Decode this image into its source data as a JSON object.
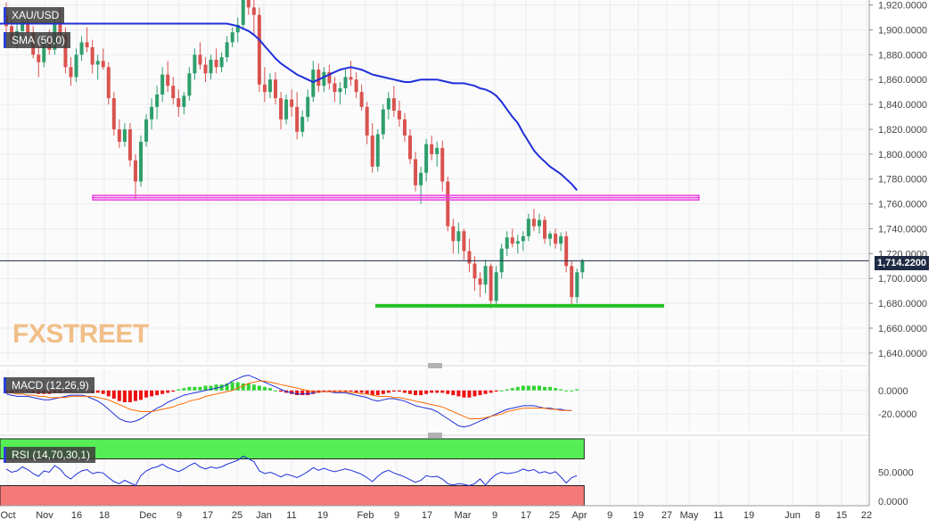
{
  "symbol": "XAU/USD",
  "indicators": {
    "sma": "SMA (50,0)",
    "macd": "MACD (12,26,9)",
    "rsi": "RSI (14,70,30,1)"
  },
  "watermark": "FXSTREET",
  "price_tag": "1,714.2200",
  "colors": {
    "up": "#2e9e6b",
    "down": "#d9534f",
    "sma": "#1f2fd8",
    "resistance": "#e93ee0",
    "support": "#22c322",
    "macd_pos": "#32d432",
    "macd_neg": "#ee1111",
    "macd_line": "#1f2fd8",
    "signal_line": "#ff6a00",
    "rsi_over": "#55ee55",
    "rsi_under": "#f47a7a",
    "rsi_line": "#1f2fd8"
  },
  "chart_data": [
    {
      "type": "candlestick",
      "title": "XAU/USD",
      "x_ticks": [
        "Oct",
        "Nov",
        "16",
        "18",
        "Dec",
        "9",
        "17",
        "25",
        "Jan",
        "11",
        "19",
        "Feb",
        "9",
        "17",
        "Mar",
        "9",
        "17",
        "25",
        "Apr",
        "9",
        "19",
        "27",
        "May",
        "11",
        "19",
        "Jun",
        "8",
        "15",
        "22"
      ],
      "y_ticks": [
        "1,920.0000",
        "1,900.0000",
        "1,880.0000",
        "1,860.0000",
        "1,840.0000",
        "1,820.0000",
        "1,800.0000",
        "1,780.0000",
        "1,760.0000",
        "1,740.0000",
        "1,720.0000",
        "1,700.0000",
        "1,680.0000",
        "1,660.0000",
        "1,640.0000"
      ],
      "ylim": [
        1632,
        1924
      ],
      "candles": [
        [
          1912,
          1922,
          1897,
          1903
        ],
        [
          1903,
          1908,
          1888,
          1892
        ],
        [
          1892,
          1905,
          1885,
          1899
        ],
        [
          1899,
          1912,
          1890,
          1906
        ],
        [
          1906,
          1916,
          1895,
          1898
        ],
        [
          1898,
          1903,
          1877,
          1880
        ],
        [
          1880,
          1888,
          1862,
          1874
        ],
        [
          1874,
          1895,
          1870,
          1891
        ],
        [
          1891,
          1900,
          1880,
          1884
        ],
        [
          1884,
          1912,
          1880,
          1905
        ],
        [
          1905,
          1918,
          1892,
          1896
        ],
        [
          1896,
          1902,
          1865,
          1870
        ],
        [
          1870,
          1878,
          1855,
          1862
        ],
        [
          1862,
          1885,
          1858,
          1880
        ],
        [
          1880,
          1895,
          1875,
          1890
        ],
        [
          1890,
          1902,
          1882,
          1886
        ],
        [
          1886,
          1892,
          1865,
          1872
        ],
        [
          1872,
          1880,
          1860,
          1875
        ],
        [
          1875,
          1885,
          1868,
          1870
        ],
        [
          1870,
          1874,
          1840,
          1845
        ],
        [
          1845,
          1850,
          1815,
          1820
        ],
        [
          1820,
          1828,
          1805,
          1810
        ],
        [
          1810,
          1825,
          1806,
          1820
        ],
        [
          1820,
          1825,
          1790,
          1795
        ],
        [
          1795,
          1800,
          1764,
          1778
        ],
        [
          1778,
          1815,
          1774,
          1810
        ],
        [
          1810,
          1832,
          1806,
          1828
        ],
        [
          1828,
          1845,
          1820,
          1838
        ],
        [
          1838,
          1855,
          1828,
          1848
        ],
        [
          1848,
          1870,
          1842,
          1864
        ],
        [
          1864,
          1875,
          1850,
          1855
        ],
        [
          1855,
          1862,
          1840,
          1845
        ],
        [
          1845,
          1852,
          1830,
          1838
        ],
        [
          1838,
          1850,
          1832,
          1847
        ],
        [
          1847,
          1870,
          1843,
          1865
        ],
        [
          1865,
          1885,
          1860,
          1880
        ],
        [
          1880,
          1890,
          1868,
          1872
        ],
        [
          1872,
          1878,
          1858,
          1865
        ],
        [
          1865,
          1880,
          1860,
          1876
        ],
        [
          1876,
          1885,
          1865,
          1870
        ],
        [
          1870,
          1882,
          1866,
          1878
        ],
        [
          1878,
          1895,
          1874,
          1890
        ],
        [
          1890,
          1902,
          1886,
          1898
        ],
        [
          1898,
          1910,
          1890,
          1904
        ],
        [
          1904,
          1932,
          1900,
          1926
        ],
        [
          1926,
          1935,
          1912,
          1918
        ],
        [
          1918,
          1925,
          1895,
          1912
        ],
        [
          1912,
          1918,
          1850,
          1856
        ],
        [
          1856,
          1870,
          1842,
          1850
        ],
        [
          1850,
          1865,
          1845,
          1860
        ],
        [
          1860,
          1866,
          1840,
          1845
        ],
        [
          1845,
          1850,
          1820,
          1828
        ],
        [
          1828,
          1848,
          1824,
          1844
        ],
        [
          1844,
          1852,
          1830,
          1838
        ],
        [
          1838,
          1850,
          1812,
          1818
        ],
        [
          1818,
          1835,
          1814,
          1830
        ],
        [
          1830,
          1852,
          1826,
          1846
        ],
        [
          1846,
          1875,
          1842,
          1868
        ],
        [
          1868,
          1873,
          1850,
          1855
        ],
        [
          1855,
          1870,
          1850,
          1866
        ],
        [
          1866,
          1872,
          1852,
          1857
        ],
        [
          1857,
          1862,
          1842,
          1850
        ],
        [
          1850,
          1858,
          1840,
          1853
        ],
        [
          1853,
          1868,
          1848,
          1862
        ],
        [
          1862,
          1875,
          1855,
          1860
        ],
        [
          1860,
          1866,
          1845,
          1850
        ],
        [
          1850,
          1856,
          1835,
          1838
        ],
        [
          1838,
          1842,
          1808,
          1815
        ],
        [
          1815,
          1825,
          1785,
          1790
        ],
        [
          1790,
          1820,
          1786,
          1816
        ],
        [
          1816,
          1840,
          1812,
          1836
        ],
        [
          1836,
          1850,
          1828,
          1845
        ],
        [
          1845,
          1855,
          1830,
          1835
        ],
        [
          1835,
          1843,
          1822,
          1828
        ],
        [
          1828,
          1833,
          1810,
          1815
        ],
        [
          1815,
          1820,
          1792,
          1796
        ],
        [
          1796,
          1802,
          1770,
          1775
        ],
        [
          1775,
          1790,
          1760,
          1785
        ],
        [
          1785,
          1812,
          1778,
          1808
        ],
        [
          1808,
          1815,
          1795,
          1800
        ],
        [
          1800,
          1810,
          1790,
          1805
        ],
        [
          1805,
          1811,
          1770,
          1778
        ],
        [
          1778,
          1782,
          1738,
          1742
        ],
        [
          1742,
          1748,
          1720,
          1730
        ],
        [
          1730,
          1745,
          1720,
          1738
        ],
        [
          1738,
          1740,
          1715,
          1722
        ],
        [
          1722,
          1732,
          1705,
          1712
        ],
        [
          1712,
          1718,
          1690,
          1700
        ],
        [
          1700,
          1705,
          1685,
          1695
        ],
        [
          1695,
          1715,
          1688,
          1710
        ],
        [
          1710,
          1712,
          1676,
          1682
        ],
        [
          1682,
          1710,
          1678,
          1705
        ],
        [
          1705,
          1728,
          1700,
          1724
        ],
        [
          1724,
          1738,
          1718,
          1733
        ],
        [
          1733,
          1740,
          1725,
          1728
        ],
        [
          1728,
          1735,
          1720,
          1730
        ],
        [
          1730,
          1738,
          1722,
          1734
        ],
        [
          1734,
          1752,
          1730,
          1748
        ],
        [
          1748,
          1756,
          1738,
          1742
        ],
        [
          1742,
          1752,
          1736,
          1747
        ],
        [
          1747,
          1750,
          1728,
          1732
        ],
        [
          1732,
          1738,
          1726,
          1736
        ],
        [
          1736,
          1740,
          1724,
          1728
        ],
        [
          1728,
          1737,
          1722,
          1734
        ],
        [
          1734,
          1738,
          1705,
          1710
        ],
        [
          1710,
          1714,
          1677,
          1685
        ],
        [
          1685,
          1708,
          1680,
          1705
        ],
        [
          1705,
          1716,
          1700,
          1714.22
        ]
      ],
      "sma_50": [
        1905,
        1904,
        1903,
        1901,
        1899,
        1896,
        1892,
        1887,
        1882,
        1877,
        1873,
        1870,
        1867,
        1864,
        1862,
        1860,
        1858,
        1860,
        1862,
        1864,
        1866,
        1868,
        1869,
        1870,
        1869,
        1868,
        1866,
        1864,
        1863,
        1862,
        1861,
        1860,
        1859,
        1858,
        1858,
        1859,
        1860,
        1860,
        1860,
        1860,
        1859,
        1858,
        1857,
        1857,
        1857,
        1856,
        1855,
        1853,
        1852,
        1850,
        1847,
        1842,
        1836,
        1830,
        1825,
        1817,
        1810,
        1803,
        1798,
        1794,
        1790,
        1787,
        1784,
        1780,
        1776,
        1771
      ],
      "sma_start_index": 41,
      "resistance": 1765,
      "support": 1678,
      "current": 1714.22
    },
    {
      "type": "bar+line",
      "title": "MACD (12,26,9)",
      "y_ticks": [
        "0.0000",
        "-20.0000"
      ],
      "ylim": [
        -35,
        18
      ],
      "histogram": [
        -2,
        -2,
        -1,
        -1,
        -1,
        -2,
        -3,
        -3,
        -3,
        -2,
        -2,
        -1,
        -1,
        0,
        0,
        -1,
        -2,
        -2,
        -3,
        -5,
        -7,
        -9,
        -10,
        -10,
        -9,
        -8,
        -6,
        -5,
        -4,
        -3,
        -2,
        -1,
        1,
        2,
        3,
        3,
        3,
        4,
        4,
        5,
        5,
        6,
        7,
        7,
        6,
        6,
        5,
        4,
        3,
        2,
        0,
        -1,
        -2,
        -3,
        -4,
        -4,
        -4,
        -3,
        -2,
        -1,
        -1,
        -1,
        -1,
        -1,
        -1,
        -2,
        -2,
        -3,
        -4,
        -4,
        -3,
        -2,
        -1,
        -1,
        -2,
        -3,
        -4,
        -4,
        -3,
        -2,
        -2,
        -2,
        -3,
        -4,
        -5,
        -6,
        -6,
        -5,
        -4,
        -3,
        -2,
        -1,
        0,
        1,
        2,
        3,
        4,
        4,
        4,
        4,
        3,
        3,
        2,
        1,
        0,
        0,
        1
      ],
      "macd": [
        -3,
        -4,
        -5,
        -5,
        -5,
        -6,
        -7,
        -8,
        -8,
        -7,
        -6,
        -5,
        -4,
        -4,
        -4,
        -5,
        -7,
        -9,
        -12,
        -16,
        -20,
        -24,
        -26,
        -27,
        -26,
        -24,
        -21,
        -18,
        -15,
        -13,
        -10,
        -8,
        -6,
        -4,
        -3,
        -2,
        -1,
        0,
        1,
        2,
        3,
        5,
        8,
        10,
        12,
        13,
        11,
        9,
        7,
        5,
        3,
        1,
        -1,
        -2,
        -3,
        -3,
        -3,
        -2,
        -1,
        -1,
        -1,
        -2,
        -2,
        -2,
        -3,
        -4,
        -5,
        -6,
        -8,
        -9,
        -8,
        -7,
        -7,
        -8,
        -9,
        -11,
        -13,
        -14,
        -15,
        -16,
        -18,
        -21,
        -24,
        -27,
        -30,
        -31,
        -30,
        -28,
        -26,
        -24,
        -22,
        -20,
        -18,
        -16,
        -15,
        -14,
        -13,
        -13,
        -13,
        -14,
        -15,
        -15,
        -16,
        -16,
        -17,
        -17
      ],
      "signal": [
        -2,
        -2,
        -3,
        -3,
        -4,
        -4,
        -5,
        -5,
        -6,
        -6,
        -6,
        -6,
        -5,
        -5,
        -5,
        -5,
        -5,
        -6,
        -7,
        -8,
        -10,
        -12,
        -14,
        -16,
        -17,
        -18,
        -18,
        -18,
        -17,
        -16,
        -15,
        -14,
        -12,
        -11,
        -9,
        -8,
        -7,
        -5,
        -4,
        -3,
        -2,
        -1,
        0,
        2,
        4,
        6,
        7,
        8,
        8,
        7,
        6,
        5,
        4,
        3,
        2,
        1,
        0,
        -1,
        -1,
        -1,
        -1,
        -1,
        -1,
        -1,
        -2,
        -2,
        -3,
        -3,
        -4,
        -5,
        -5,
        -5,
        -6,
        -6,
        -7,
        -8,
        -9,
        -10,
        -11,
        -12,
        -13,
        -14,
        -16,
        -18,
        -20,
        -22,
        -24,
        -24,
        -24,
        -23,
        -22,
        -21,
        -20,
        -18,
        -17,
        -16,
        -15,
        -15,
        -15,
        -15,
        -15,
        -16,
        -16,
        -17,
        -17,
        -17
      ]
    },
    {
      "type": "line",
      "title": "RSI (14,70,30,1)",
      "y_ticks": [
        "50.0000",
        "0.0000"
      ],
      "ylim": [
        0,
        100
      ],
      "overbought": 70,
      "oversold": 30,
      "values": [
        55,
        50,
        52,
        58,
        54,
        48,
        44,
        52,
        50,
        60,
        55,
        45,
        40,
        47,
        52,
        54,
        48,
        50,
        49,
        42,
        36,
        33,
        38,
        34,
        30,
        45,
        52,
        56,
        58,
        62,
        57,
        54,
        51,
        55,
        60,
        64,
        58,
        55,
        58,
        56,
        58,
        62,
        65,
        68,
        74,
        70,
        66,
        52,
        48,
        50,
        47,
        43,
        47,
        45,
        42,
        46,
        51,
        57,
        53,
        56,
        53,
        51,
        53,
        55,
        53,
        50,
        47,
        42,
        36,
        44,
        50,
        53,
        49,
        46,
        43,
        39,
        35,
        38,
        45,
        43,
        44,
        40,
        33,
        31,
        33,
        32,
        30,
        33,
        40,
        31,
        40,
        47,
        50,
        48,
        49,
        51,
        55,
        52,
        54,
        49,
        51,
        48,
        51,
        43,
        34,
        42,
        45
      ]
    }
  ]
}
